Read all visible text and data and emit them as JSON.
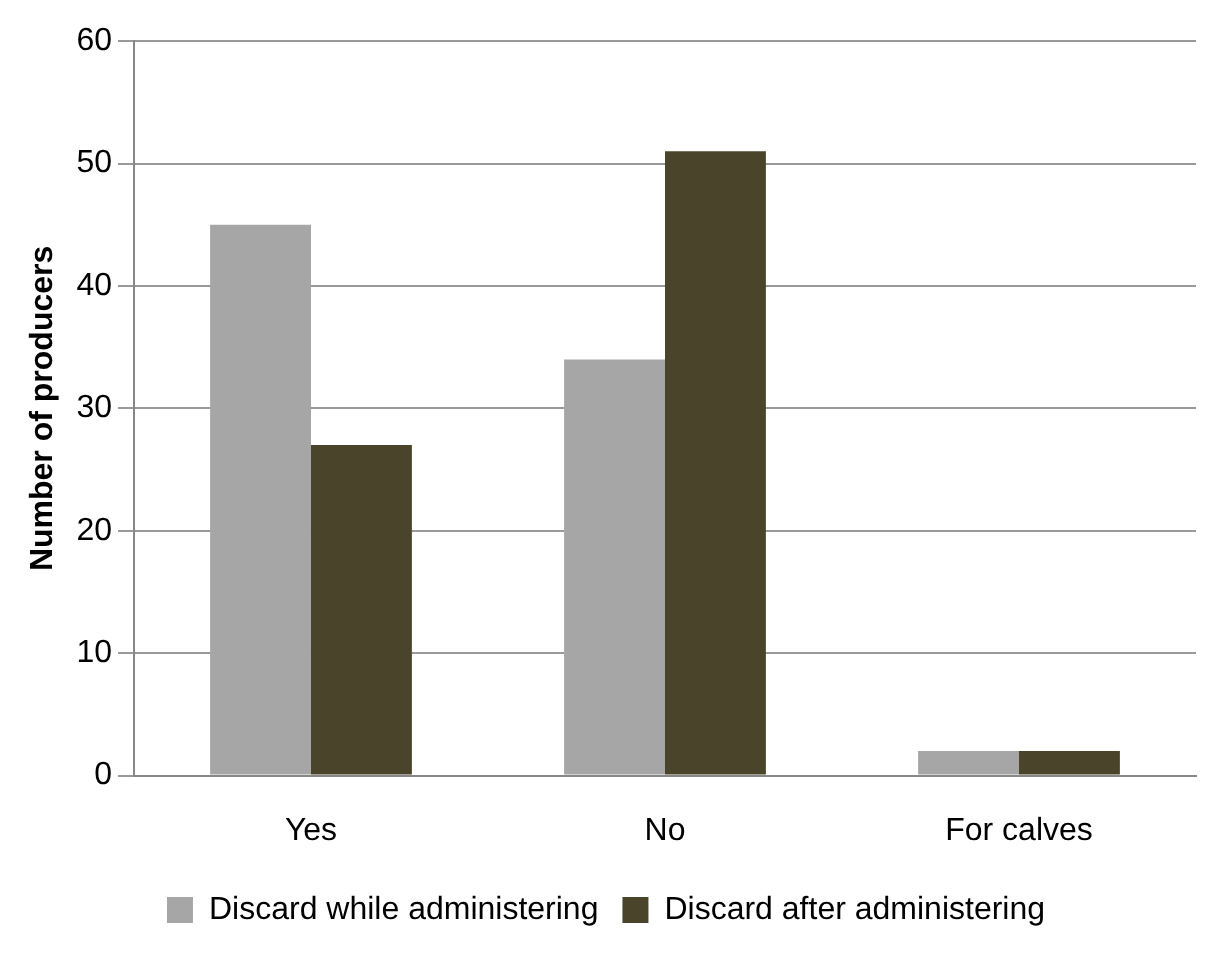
{
  "chart_data": {
    "type": "bar",
    "ylabel": "Number of producers",
    "categories": [
      "Yes",
      "No",
      "For calves"
    ],
    "series": [
      {
        "name": "Discard while administering",
        "color": "#a6a6a6",
        "values": [
          45,
          34,
          2
        ]
      },
      {
        "name": "Discard after administering",
        "color": "#4a442a",
        "values": [
          27,
          51,
          2
        ]
      }
    ],
    "ylim": [
      0,
      60
    ],
    "yticks": [
      0,
      10,
      20,
      30,
      40,
      50,
      60
    ],
    "grid": "y",
    "legend": "bottom"
  }
}
